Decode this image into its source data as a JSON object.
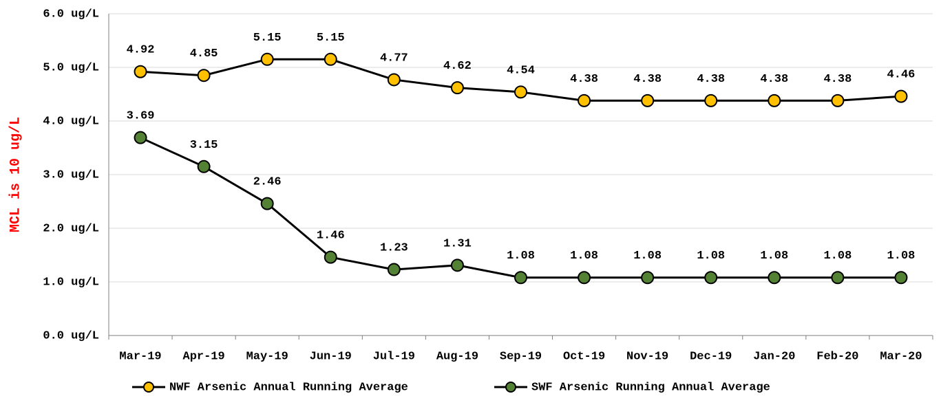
{
  "chart_data": {
    "type": "line",
    "y_label": "MCL is 10 ug/L",
    "categories": [
      "Mar-19",
      "Apr-19",
      "May-19",
      "Jun-19",
      "Jul-19",
      "Aug-19",
      "Sep-19",
      "Oct-19",
      "Nov-19",
      "Dec-19",
      "Jan-20",
      "Feb-20",
      "Mar-20"
    ],
    "series": [
      {
        "name": "NWF Arsenic Annual Running Average",
        "color": "#FFC000",
        "values": [
          4.92,
          4.85,
          5.15,
          5.15,
          4.77,
          4.62,
          4.54,
          4.38,
          4.38,
          4.38,
          4.38,
          4.38,
          4.46
        ]
      },
      {
        "name": "SWF Arsenic Running Annual Average",
        "color": "#548235",
        "values": [
          3.69,
          3.15,
          2.46,
          1.46,
          1.23,
          1.31,
          1.08,
          1.08,
          1.08,
          1.08,
          1.08,
          1.08,
          1.08
        ]
      }
    ],
    "ylim": [
      0,
      6
    ],
    "yticks": [
      {
        "value": 0,
        "label": "0.0 ug/L"
      },
      {
        "value": 1,
        "label": "1.0 ug/L"
      },
      {
        "value": 2,
        "label": "2.0 ug/L"
      },
      {
        "value": 3,
        "label": "3.0 ug/L"
      },
      {
        "value": 4,
        "label": "4.0 ug/L"
      },
      {
        "value": 5,
        "label": "5.0 ug/L"
      },
      {
        "value": 6,
        "label": "6.0 ug/L"
      }
    ],
    "grid": true,
    "legend": "bottom"
  }
}
